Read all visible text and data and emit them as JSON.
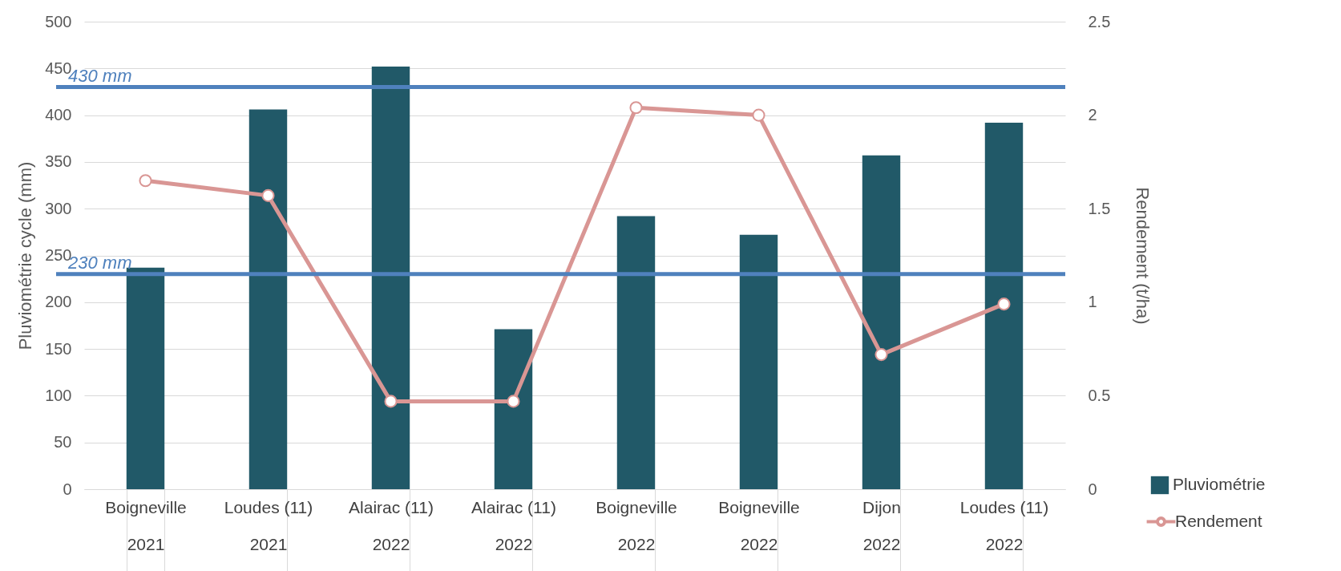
{
  "chart_data": {
    "type": "bar",
    "categories": [
      "Boigneville\n2021",
      "Loudes (11)\n2021",
      "Alairac (11)\n2022",
      "Alairac (11)\n2022",
      "Boigneville\n2022",
      "Boigneville\n2022",
      "Dijon\n2022",
      "Loudes (11)\n2022"
    ],
    "series": [
      {
        "name": "Pluviométrie",
        "type": "bar",
        "color": "#215968",
        "values": [
          237,
          406,
          452,
          171,
          292,
          272,
          357,
          392
        ]
      },
      {
        "name": "Rendement",
        "type": "line",
        "axis": "y2",
        "color": "#d99694",
        "marker": "circle",
        "values": [
          1.65,
          1.57,
          0.47,
          0.47,
          2.04,
          2.0,
          0.72,
          0.99
        ]
      }
    ],
    "ylabel": "Pluviométrie cycle (mm)",
    "y2label": "Rendement (t/ha)",
    "ylim": [
      0,
      500
    ],
    "yticks": [
      0,
      50,
      100,
      150,
      200,
      250,
      300,
      350,
      400,
      450,
      500
    ],
    "y2lim": [
      0,
      2.5
    ],
    "y2ticks": [
      0,
      0.5,
      1,
      1.5,
      2,
      2.5
    ],
    "ref_lines": [
      {
        "axis": "y",
        "value": 430,
        "label": "430 mm",
        "color": "#4f81bd"
      },
      {
        "axis": "y",
        "value": 230,
        "label": "230 mm",
        "color": "#4f81bd"
      }
    ],
    "grid": "y",
    "legend": "bottom right"
  }
}
